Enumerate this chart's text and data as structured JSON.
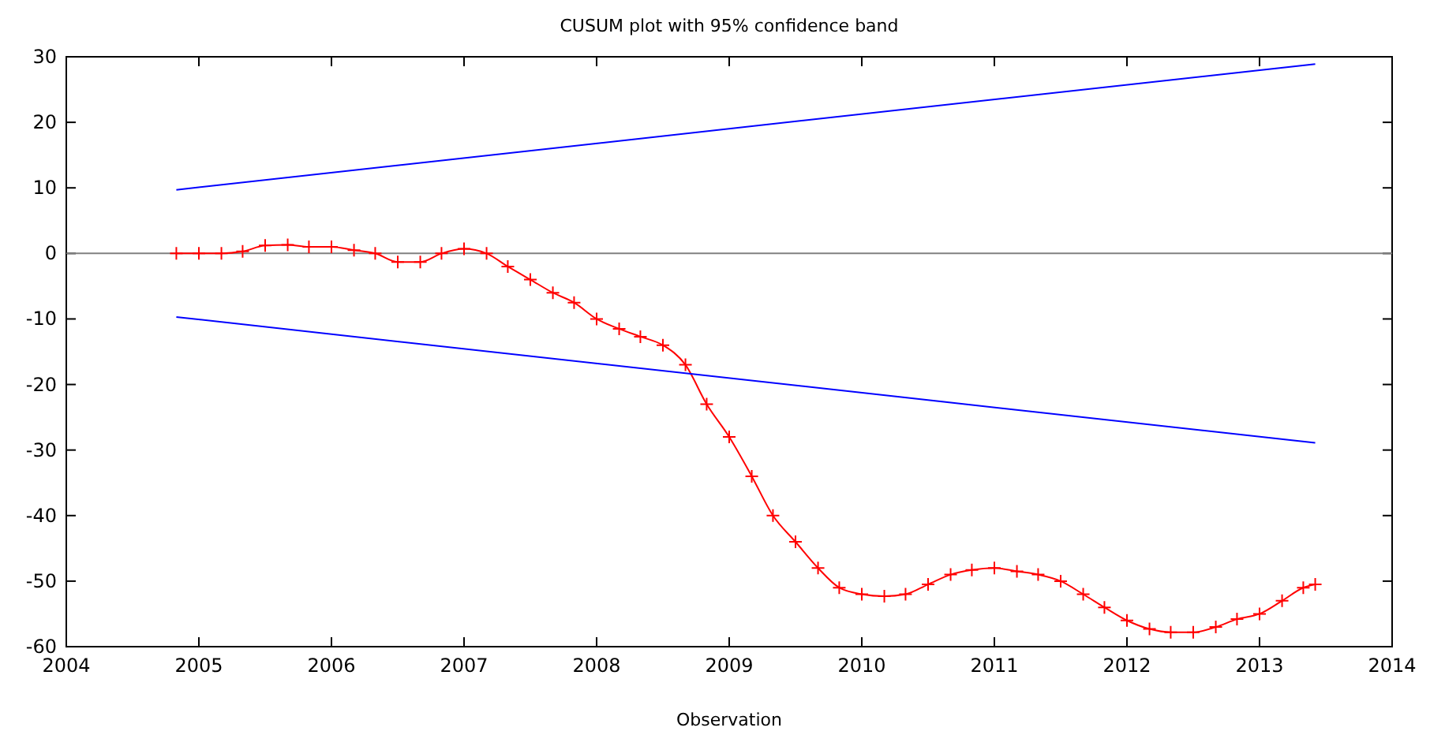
{
  "chart_data": {
    "type": "line",
    "title": "CUSUM plot with 95% confidence band",
    "xlabel": "Observation",
    "xlim": [
      2004,
      2014
    ],
    "xticks": [
      2004,
      2005,
      2006,
      2007,
      2008,
      2009,
      2010,
      2011,
      2012,
      2013,
      2014
    ],
    "ylim": [
      -60,
      30
    ],
    "yticks": [
      -60,
      -50,
      -40,
      -30,
      -20,
      -10,
      0,
      10,
      20,
      30
    ],
    "grid": false,
    "ref_lines": [
      {
        "axis": "y",
        "value": 0,
        "color": "#808080"
      }
    ],
    "series": [
      {
        "color": "#ff0000",
        "marker": "cross",
        "x": [
          2004.83,
          2005.0,
          2005.17,
          2005.33,
          2005.5,
          2005.67,
          2005.83,
          2006.0,
          2006.17,
          2006.33,
          2006.5,
          2006.67,
          2006.83,
          2007.0,
          2007.17,
          2007.33,
          2007.5,
          2007.67,
          2007.83,
          2008.0,
          2008.17,
          2008.33,
          2008.5,
          2008.67,
          2008.83,
          2009.0,
          2009.17,
          2009.33,
          2009.5,
          2009.67,
          2009.83,
          2010.0,
          2010.17,
          2010.33,
          2010.5,
          2010.67,
          2010.83,
          2011.0,
          2011.17,
          2011.33,
          2011.5,
          2011.67,
          2011.83,
          2012.0,
          2012.17,
          2012.33,
          2012.5,
          2012.67,
          2012.83,
          2013.0,
          2013.17,
          2013.33,
          2013.42
        ],
        "values": [
          0,
          0,
          0,
          0.3,
          1.2,
          1.3,
          1.0,
          1.0,
          0.5,
          0,
          -1.3,
          -1.3,
          0,
          0.7,
          0,
          -2,
          -4,
          -6,
          -7.5,
          -10,
          -11.5,
          -12.7,
          -14,
          -17,
          -23,
          -28,
          -34,
          -40,
          -44,
          -48,
          -51,
          -52,
          -52.3,
          -52,
          -50.5,
          -49,
          -48.3,
          -48,
          -48.5,
          -49,
          -50,
          -52,
          -54,
          -56,
          -57.3,
          -57.8,
          -57.8,
          -57,
          -55.8,
          -55,
          -53,
          -51,
          -50.5
        ]
      },
      {
        "color": "#0000ff",
        "marker": "none",
        "x": [
          2004.83,
          2013.42
        ],
        "values": [
          9.7,
          28.9
        ]
      },
      {
        "color": "#0000ff",
        "marker": "none",
        "x": [
          2004.83,
          2013.42
        ],
        "values": [
          -9.7,
          -28.9
        ]
      }
    ]
  }
}
